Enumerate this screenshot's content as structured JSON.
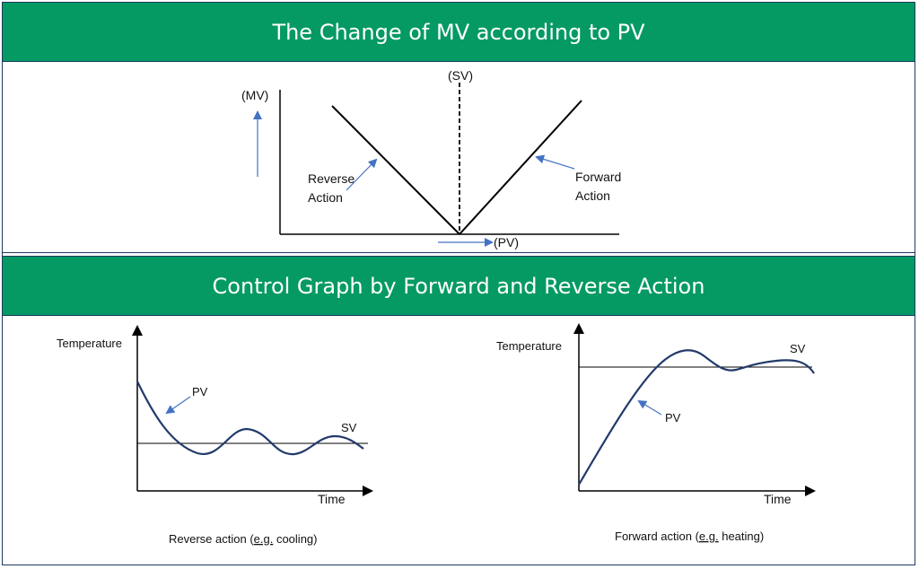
{
  "section1": {
    "title": "The Change of MV according to PV",
    "mv_label": "(MV)",
    "sv_label": "(SV)",
    "pv_label": "(PV)",
    "reverse_label_line1": "Reverse",
    "reverse_label_line2": "Action",
    "forward_label_line1": "Forward",
    "forward_label_line2": "Action"
  },
  "section2": {
    "title": "Control Graph by Forward and Reverse Action",
    "left_graph": {
      "y_label": "Temperature",
      "x_label": "Time",
      "pv_label": "PV",
      "sv_label": "SV",
      "caption_before": "Reverse action (",
      "caption_eg": "e.g.",
      "caption_after": " cooling)"
    },
    "right_graph": {
      "y_label": "Temperature",
      "x_label": "Time",
      "pv_label": "PV",
      "sv_label": "SV",
      "caption_before": "Forward action (",
      "caption_eg": "e.g.",
      "caption_after": " heating)"
    }
  },
  "colors": {
    "banner": "#059a63",
    "curve": "#223a6b",
    "arrow_blue": "#4472c4",
    "border": "#1f3a5f"
  }
}
